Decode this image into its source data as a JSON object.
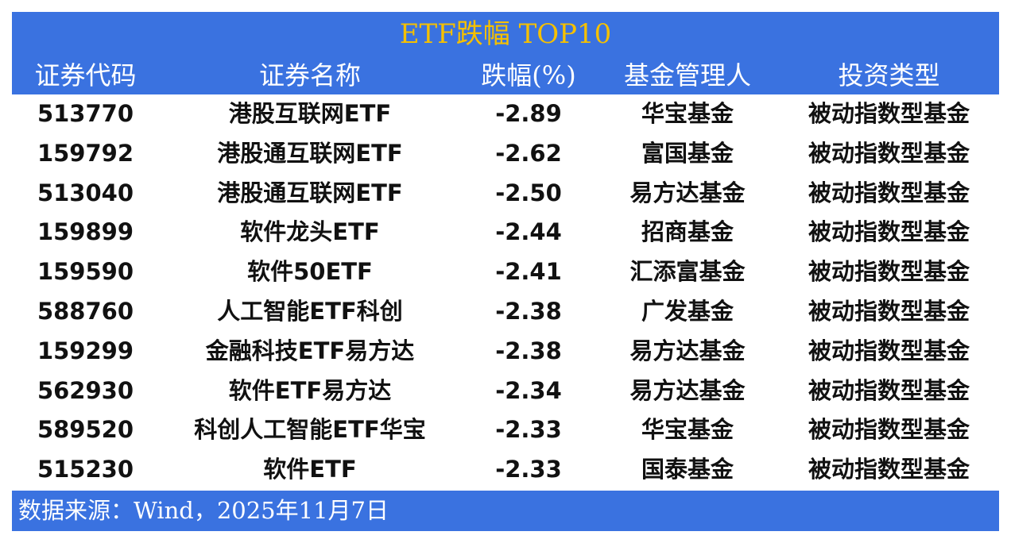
{
  "title": "ETF跌幅 TOP10",
  "columns": [
    "证券代码",
    "证券名称",
    "跌幅(%)",
    "基金管理人",
    "投资类型"
  ],
  "rows": [
    [
      "513770",
      "港股互联网ETF",
      "-2.89",
      "华宝基金",
      "被动指数型基金"
    ],
    [
      "159792",
      "港股通互联网ETF",
      "-2.62",
      "富国基金",
      "被动指数型基金"
    ],
    [
      "513040",
      "港股通互联网ETF",
      "-2.50",
      "易方达基金",
      "被动指数型基金"
    ],
    [
      "159899",
      "软件龙头ETF",
      "-2.44",
      "招商基金",
      "被动指数型基金"
    ],
    [
      "159590",
      "软件50ETF",
      "-2.41",
      "汇添富基金",
      "被动指数型基金"
    ],
    [
      "588760",
      "人工智能ETF科创",
      "-2.38",
      "广发基金",
      "被动指数型基金"
    ],
    [
      "159299",
      "金融科技ETF易方达",
      "-2.38",
      "易方达基金",
      "被动指数型基金"
    ],
    [
      "562930",
      "软件ETF易方达",
      "-2.34",
      "易方达基金",
      "被动指数型基金"
    ],
    [
      "589520",
      "科创人工智能ETF华宝",
      "-2.33",
      "华宝基金",
      "被动指数型基金"
    ],
    [
      "515230",
      "软件ETF",
      "-2.33",
      "国泰基金",
      "被动指数型基金"
    ]
  ],
  "footer": "数据来源：Wind，2025年11月7日",
  "colors": {
    "header_bg": "#3a72e0",
    "title": "#f5c000"
  }
}
